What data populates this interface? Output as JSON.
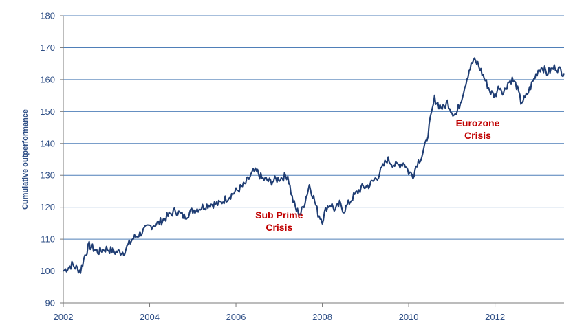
{
  "chart_data": {
    "type": "line",
    "title": "",
    "xlabel": "",
    "ylabel": "Cumulative outperformance",
    "xlim": [
      2002,
      2013.6
    ],
    "ylim": [
      90,
      180
    ],
    "x_ticks": [
      "2002",
      "2004",
      "2006",
      "2008",
      "2010",
      "2012"
    ],
    "y_ticks": [
      "90",
      "100",
      "110",
      "120",
      "130",
      "140",
      "150",
      "160",
      "170",
      "180"
    ],
    "grid": true,
    "colors": {
      "series": "#1f3d73",
      "grid": "#4f7fb8",
      "text": "#2f4f86",
      "annotation": "#c00000"
    },
    "annotations": [
      {
        "lines": [
          "Sub Prime",
          "Crisis"
        ],
        "x": 2007.0,
        "y": 116.5
      },
      {
        "lines": [
          "Eurozone",
          "Crisis"
        ],
        "x": 2011.6,
        "y": 145.3
      }
    ],
    "series": [
      {
        "x": [
          2002.0,
          2002.2,
          2002.4,
          2002.5,
          2002.6,
          2002.8,
          2003.0,
          2003.2,
          2003.4,
          2003.5,
          2003.6,
          2003.8,
          2004.0,
          2004.2,
          2004.4,
          2004.6,
          2004.8,
          2005.0,
          2005.2,
          2005.4,
          2005.6,
          2005.8,
          2006.0,
          2006.2,
          2006.3,
          2006.4,
          2006.5,
          2006.6,
          2006.8,
          2007.0,
          2007.2,
          2007.3,
          2007.4,
          2007.5,
          2007.6,
          2007.7,
          2007.8,
          2007.9,
          2008.0,
          2008.1,
          2008.2,
          2008.3,
          2008.4,
          2008.5,
          2008.7,
          2008.9,
          2009.1,
          2009.3,
          2009.5,
          2009.7,
          2009.9,
          2010.0,
          2010.1,
          2010.2,
          2010.3,
          2010.4,
          2010.5,
          2010.6,
          2010.7,
          2010.8,
          2010.9,
          2011.0,
          2011.1,
          2011.2,
          2011.3,
          2011.4,
          2011.5,
          2011.6,
          2011.7,
          2011.8,
          2011.9,
          2012.0,
          2012.1,
          2012.2,
          2012.3,
          2012.4,
          2012.5,
          2012.6,
          2012.7,
          2012.8,
          2012.9,
          2013.0,
          2013.1,
          2013.2,
          2013.3,
          2013.4,
          2013.5,
          2013.6
        ],
        "values": [
          100,
          102,
          100,
          105,
          108,
          106,
          107,
          106,
          106,
          108,
          110,
          112,
          114,
          115,
          117,
          119,
          117,
          119,
          120,
          121,
          121,
          123,
          125,
          127,
          129,
          131,
          131,
          129,
          128,
          129,
          130,
          123,
          119,
          118,
          122,
          127,
          123,
          118,
          116,
          120,
          121,
          119,
          121,
          119,
          123,
          126,
          127,
          130,
          135,
          133,
          134,
          131,
          130,
          134,
          136,
          140,
          147,
          154,
          152,
          151,
          153,
          150,
          149,
          153,
          158,
          163,
          166,
          165,
          162,
          159,
          156,
          155,
          158,
          156,
          159,
          160,
          158,
          153,
          154,
          157,
          160,
          163,
          164,
          162,
          163,
          164,
          163,
          162
        ]
      }
    ]
  }
}
